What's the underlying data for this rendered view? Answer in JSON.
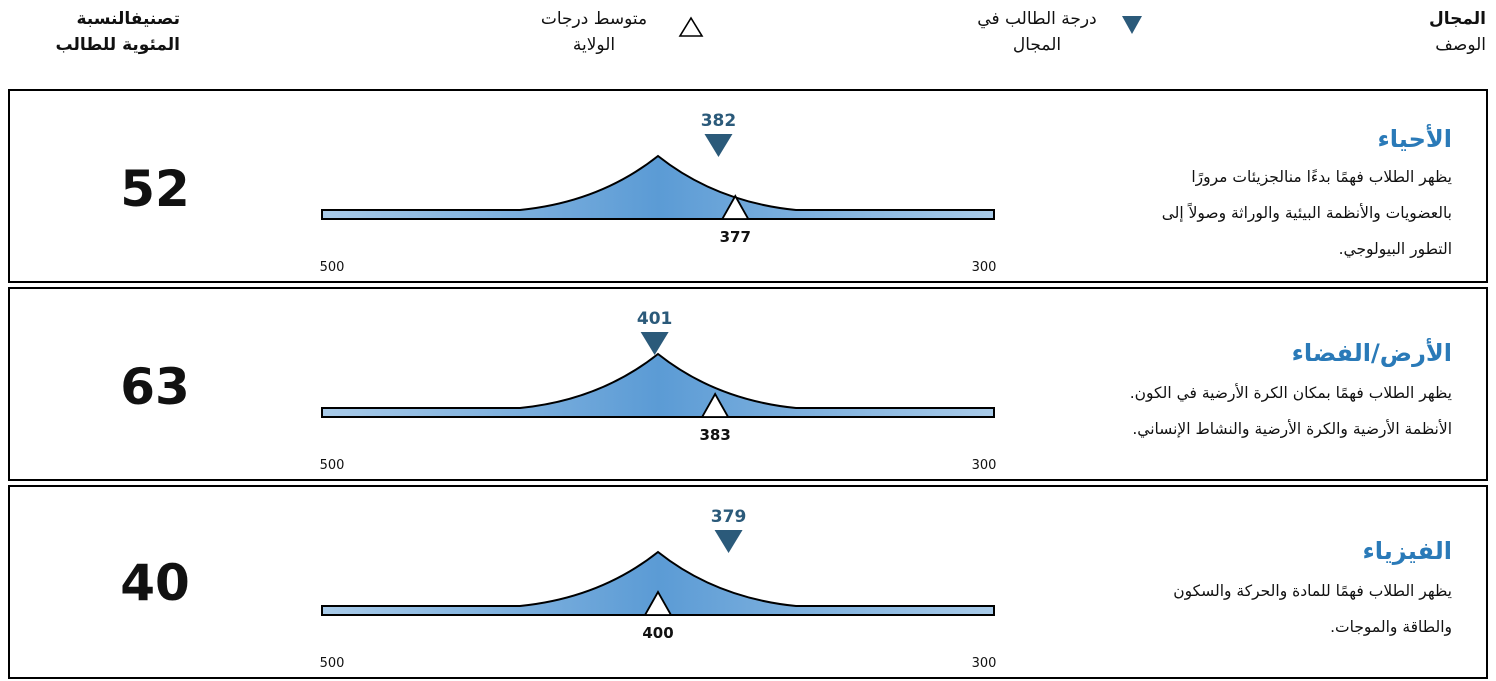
{
  "header": {
    "area_title": "المجال",
    "area_subtitle": "الوصف",
    "student_score_line1": "درجة الطالب في",
    "student_score_line2": "المجال",
    "state_avg_line1": "متوسط درجات",
    "state_avg_line2": "الولاية",
    "percentile_line1": "تصنيفالنسبة",
    "percentile_line2": "المئوية للطالب"
  },
  "colors": {
    "title": "#2a7ab8",
    "student_marker": "#2b5a7a",
    "curve_center": "#5b9bd5",
    "curve_edge": "#a9cbe9"
  },
  "chart_data": [
    {
      "type": "scale",
      "title": "الأحياء",
      "description": [
        "يظهر الطلاب فهمًا بدءًا منالجزيئات مرورًا",
        "بالعضويات والأنظمة البيئية والوراثة  وصولاً إلى",
        "التطور البيولوجي."
      ],
      "student_score": 382,
      "state_average": 377,
      "percentile": "52",
      "axis_left": "500",
      "axis_right": "300",
      "range": [
        500,
        300
      ]
    },
    {
      "type": "scale",
      "title": "الأرض/الفضاء",
      "description": [
        "يظهر الطلاب  فهمًا بمكان الكرة الأرضية في الكون.",
        "الأنظمة الأرضية والكرة الأرضية والنشاط الإنساني."
      ],
      "student_score": 401,
      "state_average": 383,
      "percentile": "63",
      "axis_left": "500",
      "axis_right": "300",
      "range": [
        500,
        300
      ]
    },
    {
      "type": "scale",
      "title": "الفيزياء",
      "description": [
        "يظهر الطلاب  فهمًا للمادة والحركة والسكون",
        "والطاقة والموجات."
      ],
      "student_score": 379,
      "state_average": 400,
      "percentile": "40",
      "axis_left": "500",
      "axis_right": "300",
      "range": [
        500,
        300
      ]
    }
  ]
}
